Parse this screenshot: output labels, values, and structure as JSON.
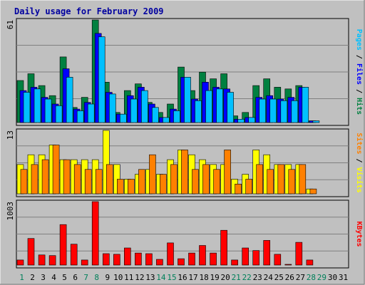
{
  "chart_data": {
    "type": "bar",
    "title": "Daily usage for February 2009",
    "days": [
      "1",
      "2",
      "3",
      "4",
      "5",
      "6",
      "7",
      "8",
      "9",
      "10",
      "11",
      "12",
      "13",
      "14",
      "15",
      "16",
      "17",
      "18",
      "19",
      "20",
      "21",
      "22",
      "23",
      "24",
      "25",
      "26",
      "27",
      "28",
      "29",
      "30",
      "31"
    ],
    "weekend_days": [
      "1",
      "7",
      "8",
      "14",
      "15",
      "21",
      "22",
      "28",
      "29"
    ],
    "panels": [
      {
        "id": "hits",
        "ymax_label": "61",
        "ymax": 61,
        "legend": [
          {
            "label": "Pages",
            "color": "#00c0ff"
          },
          {
            "label": " / ",
            "color": "#000000"
          },
          {
            "label": "Files",
            "color": "#0000ff"
          },
          {
            "label": " / ",
            "color": "#000000"
          },
          {
            "label": "Hits",
            "color": "#008040"
          }
        ],
        "series": [
          {
            "name": "Hits",
            "color": "#008040",
            "values": [
              25,
              29,
              22,
              16,
              39,
              9,
              15,
              61,
              24,
              6,
              19,
              23,
              12,
              6,
              11,
              33,
              19,
              30,
              26,
              29,
              4,
              6,
              22,
              26,
              21,
              20,
              22,
              1,
              0,
              0,
              0
            ]
          },
          {
            "name": "Files",
            "color": "#0000ff",
            "values": [
              19,
              21,
              15,
              11,
              32,
              8,
              12,
              53,
              18,
              5,
              16,
              21,
              11,
              3,
              8,
              27,
              14,
              24,
              21,
              20,
              2,
              3,
              15,
              16,
              14,
              15,
              21,
              1,
              0,
              0,
              0
            ]
          },
          {
            "name": "Pages",
            "color": "#00c0ff",
            "values": [
              18,
              20,
              14,
              10,
              27,
              7,
              11,
              51,
              17,
              5,
              14,
              19,
              9,
              3,
              7,
              27,
              13,
              19,
              20,
              18,
              2,
              3,
              14,
              14,
              13,
              13,
              21,
              1,
              0,
              0,
              0
            ]
          }
        ]
      },
      {
        "id": "visits",
        "ymax_label": "13",
        "ymax": 13,
        "legend": [
          {
            "label": "Sites",
            "color": "#ff8000"
          },
          {
            "label": " / ",
            "color": "#000000"
          },
          {
            "label": "Visits",
            "color": "#ffff00"
          }
        ],
        "series": [
          {
            "name": "Visits",
            "color": "#ffff00",
            "values": [
              6,
              8,
              8,
              10,
              7,
              7,
              7,
              7,
              13,
              6,
              3,
              4,
              5,
              4,
              7,
              9,
              8,
              7,
              6,
              6,
              3,
              4,
              9,
              8,
              6,
              6,
              6,
              1,
              0,
              0,
              0
            ]
          },
          {
            "name": "Sites",
            "color": "#ff8000",
            "values": [
              5,
              6,
              7,
              10,
              7,
              6,
              5,
              5,
              6,
              3,
              3,
              5,
              8,
              4,
              6,
              9,
              5,
              6,
              5,
              9,
              2,
              3,
              6,
              5,
              6,
              5,
              6,
              1,
              0,
              0,
              0
            ]
          }
        ]
      },
      {
        "id": "kbytes",
        "ymax_label": "1003",
        "ymax": 1003,
        "legend": [
          {
            "label": "KBytes",
            "color": "#ff0000"
          }
        ],
        "series": [
          {
            "name": "KBytes",
            "color": "#ff0000",
            "values": [
              80,
              420,
              160,
              150,
              640,
              330,
              80,
              1003,
              180,
              170,
              270,
              190,
              180,
              90,
              350,
              100,
              190,
              310,
              190,
              550,
              80,
              270,
              230,
              390,
              170,
              10,
              360,
              80,
              0,
              0,
              0
            ]
          }
        ]
      }
    ]
  }
}
